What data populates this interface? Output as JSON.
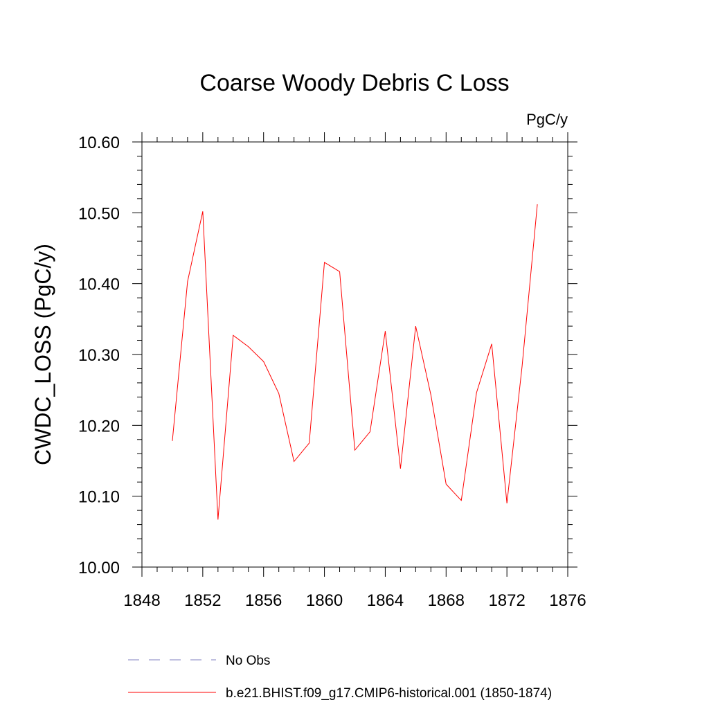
{
  "chart_data": {
    "type": "line",
    "title": "Coarse Woody Debris C Loss",
    "units": "PgC/y",
    "xlabel": "",
    "ylabel": "CWDC_LOSS  (PgC/y)",
    "xlim": [
      1848,
      1876
    ],
    "ylim": [
      10.0,
      10.6
    ],
    "x_ticks": [
      1848,
      1852,
      1856,
      1860,
      1864,
      1868,
      1872,
      1876
    ],
    "x_tick_labels": [
      "1848",
      "1852",
      "1856",
      "1860",
      "1864",
      "1868",
      "1872",
      "1876"
    ],
    "x_minor_step": 1,
    "y_ticks": [
      10.0,
      10.1,
      10.2,
      10.3,
      10.4,
      10.5,
      10.6
    ],
    "y_tick_labels": [
      "10.00",
      "10.10",
      "10.20",
      "10.30",
      "10.40",
      "10.50",
      "10.60"
    ],
    "y_minor_step": 0.02,
    "grid": false,
    "series": [
      {
        "name": "b.e21.BHIST.f09_g17.CMIP6-historical.001 (1850-1874)",
        "color": "#ff0000",
        "style": "solid",
        "x": [
          1850,
          1851,
          1852,
          1853,
          1854,
          1855,
          1856,
          1857,
          1858,
          1859,
          1860,
          1861,
          1862,
          1863,
          1864,
          1865,
          1866,
          1867,
          1868,
          1869,
          1870,
          1871,
          1872,
          1873,
          1874
        ],
        "values": [
          10.178,
          10.403,
          10.502,
          10.067,
          10.327,
          10.311,
          10.29,
          10.245,
          10.149,
          10.175,
          10.43,
          10.417,
          10.165,
          10.191,
          10.333,
          10.139,
          10.34,
          10.243,
          10.117,
          10.094,
          10.246,
          10.315,
          10.09,
          10.284,
          10.512
        ]
      }
    ],
    "legend": [
      {
        "label": "No Obs",
        "color": "#8080c0",
        "style": "dashed"
      },
      {
        "label": "b.e21.BHIST.f09_g17.CMIP6-historical.001 (1850-1874)",
        "color": "#ff0000",
        "style": "solid"
      }
    ]
  }
}
